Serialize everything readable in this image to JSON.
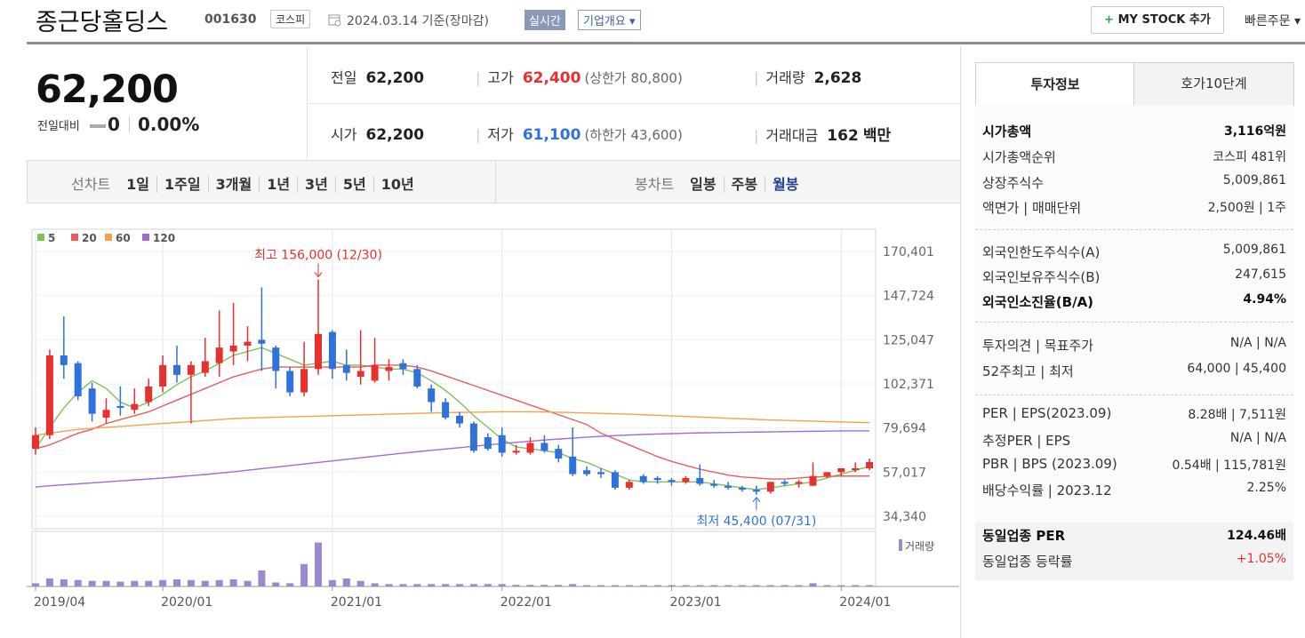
{
  "header": {
    "name": "종근당홀딩스",
    "code": "001630",
    "market": "코스피",
    "date": "2024.03.14 기준(장마감)",
    "realtime": "실시간",
    "overview": "기업개요",
    "mystock": "MY STOCK 추가",
    "quick_order": "빠른주문"
  },
  "price": {
    "current": "62,200",
    "change_label": "전일대비",
    "change": "0",
    "rate": "0.00%"
  },
  "quote": [
    {
      "label": "전일",
      "value": "62,200"
    },
    {
      "label": "고가",
      "value": "62,400",
      "extra": "(상한가 80,800)"
    },
    {
      "label": "거래량",
      "value": "2,628"
    },
    {
      "label": "시가",
      "value": "62,200"
    },
    {
      "label": "저가",
      "value": "61,100",
      "extra": "(하한가 43,600)"
    },
    {
      "label": "거래대금",
      "value": "162",
      "unit": "백만"
    }
  ],
  "chart_tabs": {
    "line_chart": "선차트",
    "periods": [
      "1일",
      "1주일",
      "3개월",
      "1년",
      "3년",
      "5년",
      "10년"
    ],
    "candle_chart": "봉차트",
    "candle_periods": [
      "일봉",
      "주봉",
      "월봉"
    ]
  },
  "info_panel": {
    "tabs": [
      "투자정보",
      "호가10단계"
    ],
    "sections": [
      [
        {
          "label": "시가총액",
          "value": "3,116억원"
        },
        {
          "label": "시가총액순위",
          "value": "코스피 481위"
        },
        {
          "label": "상장주식수",
          "value": "5,009,861"
        },
        {
          "label": "액면가 | 매매단위",
          "value": "2,500원 | 1주"
        }
      ],
      [
        {
          "label": "외국인한도주식수(A)",
          "value": "5,009,861"
        },
        {
          "label": "외국인보유주식수(B)",
          "value": "247,615"
        },
        {
          "label": "외국인소진율(B/A)",
          "value": "4.94%"
        }
      ],
      [
        {
          "label": "투자의견 | 목표주가",
          "value": "N/A | N/A"
        },
        {
          "label": "52주최고 | 최저",
          "value": "64,000 | 45,400"
        }
      ],
      [
        {
          "label": "PER | EPS(2023.09)",
          "value": "8.28배 | 7,511원"
        },
        {
          "label": "추정PER | EPS",
          "value": "N/A | N/A"
        },
        {
          "label": "PBR | BPS (2023.09)",
          "value": "0.54배 | 115,781원"
        },
        {
          "label": "배당수익률 | 2023.12",
          "value": "2.25%"
        }
      ],
      [
        {
          "label": "동일업종 PER",
          "value": "124.46배"
        },
        {
          "label": "동일업종 등락률",
          "value": "+1.05%"
        }
      ]
    ]
  },
  "chart_data": {
    "type": "candlestick",
    "categories": [
      "2019/04",
      null,
      null,
      null,
      null,
      null,
      null,
      null,
      null,
      "2020/01",
      null,
      null,
      null,
      null,
      null,
      null,
      null,
      null,
      null,
      null,
      null,
      "2021/01",
      null,
      null,
      null,
      null,
      null,
      null,
      null,
      null,
      null,
      null,
      null,
      "2022/01",
      null,
      null,
      null,
      null,
      null,
      null,
      null,
      null,
      null,
      null,
      null,
      "2023/01",
      null,
      null,
      null,
      null,
      null,
      null,
      null,
      null,
      null,
      null,
      null,
      "2024/01",
      null,
      null
    ],
    "open": [
      69000,
      76000,
      117000,
      113000,
      100000,
      85000,
      91000,
      89000,
      93000,
      101000,
      112000,
      107000,
      108000,
      113000,
      119000,
      122000,
      125000,
      121000,
      109000,
      98000,
      110000,
      129000,
      112000,
      106000,
      104000,
      109000,
      113000,
      110000,
      100000,
      93000,
      86000,
      82000,
      75000,
      76000,
      67000,
      67000,
      72000,
      69000,
      65000,
      58000,
      57000,
      57000,
      49000,
      55000,
      54000,
      53000,
      52000,
      54000,
      51000,
      50000,
      49000,
      48000,
      47000,
      52000,
      51000,
      50000,
      55000,
      57000,
      58000,
      59000
    ],
    "high": [
      80000,
      120000,
      137000,
      114000,
      103000,
      95000,
      101000,
      100000,
      105000,
      117000,
      122000,
      114000,
      126000,
      140000,
      144000,
      132000,
      152000,
      122000,
      111000,
      124000,
      156000,
      130000,
      120000,
      130000,
      126000,
      115000,
      115000,
      112000,
      102000,
      95000,
      88000,
      83000,
      77000,
      80000,
      71000,
      75000,
      76000,
      71000,
      80000,
      60000,
      59000,
      58000,
      53000,
      56000,
      55000,
      54000,
      55000,
      61000,
      53000,
      52000,
      50000,
      50000,
      52000,
      53000,
      53000,
      62000,
      57000,
      58000,
      62000,
      64000
    ],
    "low": [
      66000,
      74000,
      105000,
      94000,
      83000,
      82000,
      86000,
      87000,
      91000,
      98000,
      103000,
      82000,
      106000,
      106000,
      112000,
      114000,
      109000,
      100000,
      96000,
      96000,
      107000,
      105000,
      104000,
      102000,
      103000,
      104000,
      107000,
      100000,
      88000,
      84000,
      80000,
      67000,
      68000,
      65000,
      66000,
      66000,
      67000,
      62000,
      55000,
      55000,
      54000,
      48000,
      48000,
      51000,
      51000,
      50000,
      51000,
      50000,
      49000,
      48000,
      47000,
      45400,
      46000,
      50000,
      49000,
      50000,
      54000,
      55000,
      57000,
      58000
    ],
    "close": [
      76000,
      117000,
      112000,
      96000,
      87000,
      89000,
      90000,
      92000,
      101000,
      112000,
      107000,
      112000,
      114000,
      121000,
      122000,
      124000,
      123000,
      109000,
      98000,
      110000,
      128000,
      110000,
      108000,
      109000,
      112000,
      111000,
      110000,
      101000,
      93000,
      85000,
      82000,
      68000,
      69000,
      67000,
      68000,
      72000,
      68000,
      64000,
      56000,
      56000,
      56000,
      49000,
      52000,
      52000,
      53000,
      52000,
      54000,
      51000,
      50000,
      49000,
      48000,
      47000,
      52000,
      51000,
      52000,
      55000,
      57000,
      59000,
      59000,
      62200
    ],
    "up_color": "#e8312f",
    "down_color": "#2f72dc",
    "series": [
      {
        "name": "5",
        "color": "#7cc35a",
        "values": [
          69000,
          80000,
          90000,
          98000,
          104000,
          100000,
          93000,
          90000,
          93000,
          97000,
          102000,
          106000,
          109000,
          113000,
          117000,
          119000,
          121000,
          118000,
          115000,
          112000,
          113000,
          114000,
          112000,
          112000,
          111000,
          110000,
          110000,
          108000,
          104000,
          99000,
          93000,
          86000,
          80000,
          74000,
          70000,
          69000,
          68000,
          67000,
          64000,
          62000,
          59000,
          56000,
          53000,
          52000,
          52000,
          52000,
          52000,
          52000,
          51000,
          50000,
          49000,
          48000,
          49000,
          50000,
          51000,
          52000,
          54000,
          56000,
          58000,
          60000
        ]
      },
      {
        "name": "20",
        "color": "#ee5b5b",
        "values": [
          69000,
          71000,
          74000,
          77000,
          79000,
          82000,
          84000,
          86000,
          88000,
          91000,
          94000,
          97000,
          100000,
          103000,
          106000,
          108000,
          110000,
          111000,
          111000,
          111000,
          111000,
          111000,
          111000,
          111000,
          112000,
          112000,
          112000,
          111000,
          109000,
          106500,
          104000,
          101500,
          99000,
          96500,
          94000,
          91500,
          89000,
          86500,
          84000,
          81500,
          77000,
          74000,
          71000,
          68000,
          65000,
          62500,
          60500,
          58500,
          57000,
          55500,
          54500,
          54000,
          53500,
          53500,
          54000,
          54500,
          54800,
          55000,
          55000,
          55000
        ]
      },
      {
        "name": "60",
        "color": "#f4a24a",
        "values": [
          76000,
          77000,
          78000,
          79000,
          79500,
          80000,
          80500,
          81000,
          81500,
          82000,
          82500,
          83000,
          83500,
          84000,
          84500,
          84800,
          85000,
          85200,
          85400,
          85600,
          85800,
          86000,
          86200,
          86400,
          86600,
          86800,
          87000,
          87200,
          87400,
          87600,
          87700,
          87800,
          87900,
          88000,
          88000,
          88000,
          87900,
          87800,
          87600,
          87400,
          87200,
          87000,
          86800,
          86500,
          86200,
          85900,
          85600,
          85300,
          85000,
          84700,
          84400,
          84100,
          83800,
          83600,
          83400,
          83200,
          83000,
          82800,
          82600,
          82400
        ]
      },
      {
        "name": "120",
        "color": "#a46ad4",
        "values": [
          49400,
          50000,
          50500,
          51000,
          51500,
          52000,
          52500,
          53000,
          53500,
          54000,
          54600,
          55200,
          55800,
          56500,
          57200,
          58000,
          58800,
          59600,
          60400,
          61200,
          62000,
          62800,
          63600,
          64400,
          65200,
          66000,
          66800,
          67500,
          68200,
          68900,
          69600,
          70300,
          71000,
          71700,
          72300,
          72900,
          73500,
          74000,
          74500,
          75000,
          75400,
          75800,
          76100,
          76400,
          76600,
          76800,
          77000,
          77200,
          77300,
          77400,
          77500,
          77600,
          77700,
          77800,
          77900,
          78000,
          78100,
          78200,
          78200,
          78200
        ]
      }
    ],
    "volume": {
      "name": "거래량",
      "color": "#9d88cc",
      "ylim": [
        0,
        300000
      ],
      "values": [
        20000,
        50000,
        45000,
        40000,
        35000,
        35000,
        30000,
        35000,
        35000,
        40000,
        45000,
        40000,
        35000,
        40000,
        45000,
        35000,
        100000,
        25000,
        20000,
        140000,
        275000,
        40000,
        50000,
        35000,
        20000,
        15000,
        15000,
        15000,
        15000,
        15000,
        15000,
        15000,
        15000,
        15000,
        10000,
        10000,
        10000,
        10000,
        15000,
        8000,
        8000,
        8000,
        8000,
        8000,
        8000,
        8000,
        8000,
        8000,
        8000,
        8000,
        8000,
        8000,
        8000,
        8000,
        8000,
        20000,
        8000,
        8000,
        8000,
        8000
      ]
    },
    "ylim": [
      27950,
      181800
    ],
    "yticks": [
      {
        "value": 34340,
        "label": "34,340"
      },
      {
        "value": 57017,
        "label": "57,017"
      },
      {
        "value": 79694,
        "label": "79,694"
      },
      {
        "value": 102371,
        "label": "102,371"
      },
      {
        "value": 125047,
        "label": "125,047"
      },
      {
        "value": 147724,
        "label": "147,724"
      },
      {
        "value": 170401,
        "label": "170,401"
      }
    ],
    "grid": true,
    "annotations": {
      "high": "최고 156,000 (12/30)",
      "low": "최저 45,400 (07/31)"
    }
  }
}
